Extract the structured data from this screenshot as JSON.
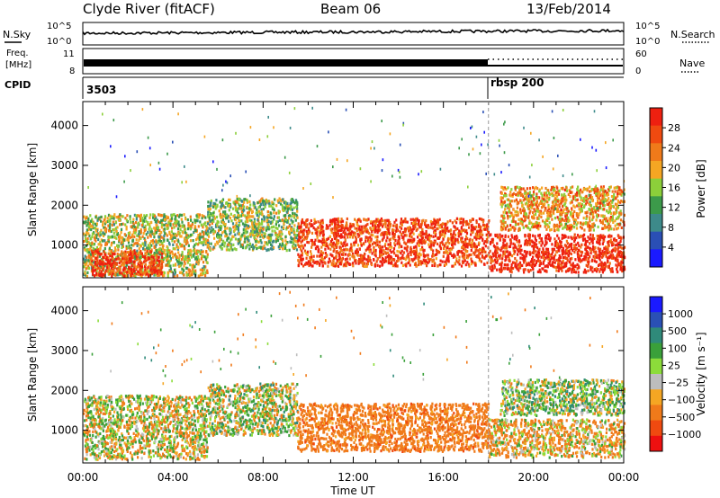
{
  "header": {
    "title": "Clyde River (fitACF)",
    "beam": "Beam 06",
    "date": "13/Feb/2014"
  },
  "strips": {
    "nsky_label": "N.Sky",
    "nsearch_label": "N.Search",
    "freq_label_line1": "Freq.",
    "freq_label_line2": "[MHz]",
    "nave_label": "Nave",
    "cpid_label": "CPID",
    "cpid_start": "3503",
    "cpid_change": "rbsp 200",
    "nsky_ticks": [
      "10^5",
      "10^0"
    ],
    "nsearch_ticks": [
      "10^5",
      "10^0"
    ],
    "freq_ticks": [
      "11",
      "8"
    ],
    "nave_ticks": [
      "60",
      "0"
    ],
    "cpid_change_hour": 18.0
  },
  "colors": {
    "power": [
      "#1a1aff",
      "#2a4fb5",
      "#3d8a8a",
      "#3c9a4a",
      "#8ccf3a",
      "#f5a623",
      "#f07a1a",
      "#f04a10",
      "#ee2010"
    ],
    "velocity": [
      "#1a1aff",
      "#2a50b5",
      "#2f8a7a",
      "#3aa03a",
      "#8cdc3a",
      "#bdbdbd",
      "#f5a623",
      "#f07a1a",
      "#f04a10",
      "#ee1010"
    ]
  },
  "chart_data": [
    {
      "type": "heatmap",
      "panel": "power",
      "ylabel": "Slant Range [km]",
      "yticks": [
        1000,
        2000,
        3000,
        4000
      ],
      "ylim": [
        180,
        4600
      ],
      "xlim": [
        0,
        24
      ],
      "colorbar_label": "Power [dB]",
      "colorbar_ticks": [
        "28",
        "24",
        "20",
        "16",
        "12",
        "8",
        "4"
      ],
      "colorbar_range": [
        0,
        30
      ],
      "echo_bands": [
        {
          "t0": 0.0,
          "t1": 5.5,
          "r0": 250,
          "r1": 1800,
          "value": 16
        },
        {
          "t0": 0.3,
          "t1": 3.5,
          "r0": 250,
          "r1": 900,
          "value": 27
        },
        {
          "t0": 5.5,
          "t1": 9.5,
          "r0": 900,
          "r1": 2200,
          "value": 14
        },
        {
          "t0": 9.5,
          "t1": 18.0,
          "r0": 500,
          "r1": 1700,
          "value": 26
        },
        {
          "t0": 18.0,
          "t1": 24.0,
          "r0": 350,
          "r1": 1300,
          "value": 29
        },
        {
          "t0": 18.5,
          "t1": 24.0,
          "r0": 1400,
          "r1": 2500,
          "value": 20
        }
      ]
    },
    {
      "type": "heatmap",
      "panel": "velocity",
      "ylabel": "Slant Range [km]",
      "yticks": [
        1000,
        2000,
        3000,
        4000
      ],
      "ylim": [
        180,
        4600
      ],
      "xlim": [
        0,
        24
      ],
      "xlabel": "Time UT",
      "xticks": [
        "00:00",
        "04:00",
        "08:00",
        "12:00",
        "16:00",
        "20:00",
        "00:00"
      ],
      "colorbar_label": "Velocity [m s⁻¹]",
      "colorbar_ticks": [
        "1000",
        "500",
        "100",
        "25",
        "−25",
        "−100",
        "−500",
        "−1000"
      ],
      "echo_bands": [
        {
          "t0": 0.0,
          "t1": 5.5,
          "r0": 300,
          "r1": 1900,
          "value": 0
        },
        {
          "t0": 5.5,
          "t1": 9.5,
          "r0": 900,
          "r1": 2200,
          "value": 50
        },
        {
          "t0": 9.5,
          "t1": 18.0,
          "r0": 500,
          "r1": 1700,
          "value": -300
        },
        {
          "t0": 18.0,
          "t1": 24.0,
          "r0": 350,
          "r1": 1300,
          "value": -100
        },
        {
          "t0": 18.5,
          "t1": 24.0,
          "r0": 1400,
          "r1": 2300,
          "value": 100
        }
      ]
    }
  ]
}
